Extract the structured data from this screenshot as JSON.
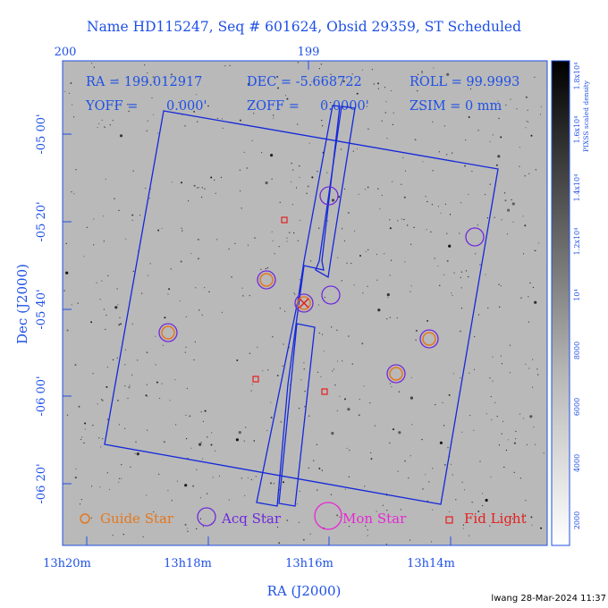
{
  "title": "Name HD115247, Seq # 601624, Obsid 29359, ST Scheduled",
  "top_axis": {
    "ticks": [
      "200",
      "199"
    ]
  },
  "x_axis": {
    "label": "RA (J2000)",
    "ticks": [
      "13h20m",
      "13h18m",
      "13h16m",
      "13h14m"
    ]
  },
  "y_axis": {
    "label": "Dec (J2000)",
    "ticks": [
      "-05 00'",
      "-05 20'",
      "-05 40'",
      "-06 00'",
      "-06 20'"
    ]
  },
  "info": {
    "ra": "RA = 199.012917",
    "dec": "DEC = -5.668722",
    "roll": "ROLL = 99.9993",
    "yoff": "YOFF =",
    "yoff_val": "0.000'",
    "zoff": "ZOFF =",
    "zoff_val": "0.0000'",
    "zsim": "ZSIM = 0 mm"
  },
  "legend": {
    "guide": "Guide Star",
    "acq": "Acq Star",
    "mon": "Mon Star",
    "fid": "Fid Light"
  },
  "colorbar": {
    "label": "PIXSS scaled density",
    "ticks": [
      "2000",
      "4000",
      "6000",
      "8000",
      "10⁴",
      "1.2x10⁴",
      "1.4x10⁴",
      "1.6x10⁴",
      "1.8x10⁴"
    ]
  },
  "footer": "lwang 28-Mar-2024 11:37",
  "colors": {
    "frame": "#1e50e6",
    "aperture": "#1428dc",
    "guide": "#e6781e",
    "acq": "#6e28dc",
    "mon": "#e628d2",
    "fid": "#e61e1e",
    "field_bg": "#b9b9b9"
  },
  "guide_stars": [
    "g1",
    "g2",
    "g3",
    "g4",
    "g5"
  ],
  "acq_stars": [
    "a1",
    "a2",
    "a3",
    "a4",
    "a5",
    "a6",
    "a7",
    "a8"
  ],
  "fid_lights": [
    "f1",
    "f2",
    "f3",
    "f4"
  ]
}
